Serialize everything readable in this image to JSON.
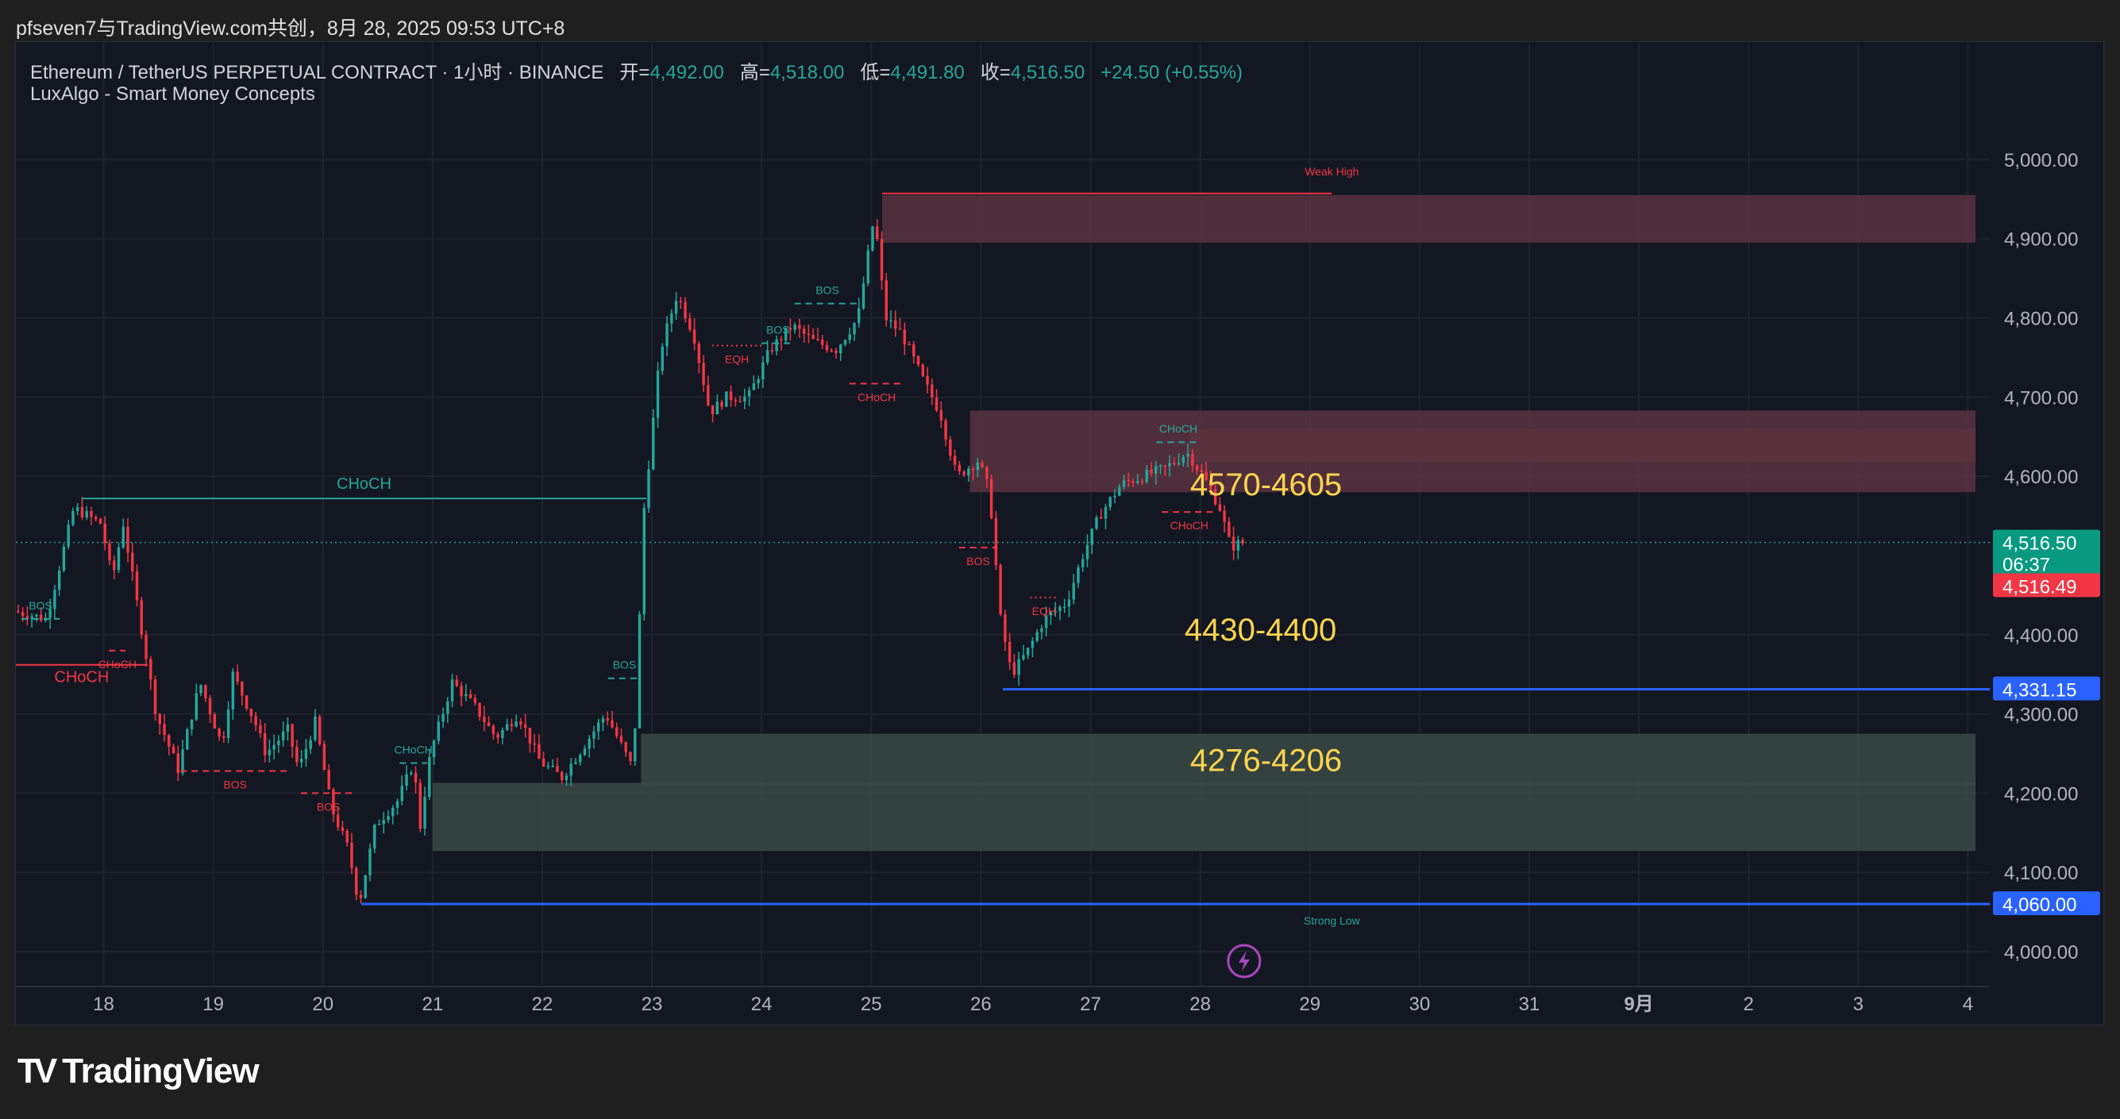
{
  "header": {
    "publisher": "pfseven7与TradingView.com共创，8月 28, 2025 09:53 UTC+8"
  },
  "legend": {
    "symbol": "Ethereum / TetherUS PERPETUAL CONTRACT · 1小时 · BINANCE",
    "open_label": "开=",
    "open": "4,492.00",
    "high_label": "高=",
    "high": "4,518.00",
    "low_label": "低=",
    "low": "4,491.80",
    "close_label": "收=",
    "close": "4,516.50",
    "change": "+24.50 (+0.55%)",
    "indicator": "LuxAlgo - Smart Money Concepts"
  },
  "footer": {
    "brand": "TradingView"
  },
  "colors": {
    "up": "#26a69a",
    "down": "#f23645",
    "background": "#131722",
    "grid": "#1e222d",
    "level": "#2962ff",
    "annotation": "#ffd54f",
    "bull_zone": "#3b4a44",
    "bear_zone": "#5a3340"
  },
  "chart_data": {
    "type": "candlestick",
    "timeframe": "1小时",
    "ylim": [
      3970,
      5060
    ],
    "xlim_days": [
      17.2,
      35.2
    ],
    "grid": true,
    "y_ticks": [
      {
        "v": 5000,
        "label": "5,000.00"
      },
      {
        "v": 4900,
        "label": "4,900.00"
      },
      {
        "v": 4800,
        "label": "4,800.00"
      },
      {
        "v": 4700,
        "label": "4,700.00"
      },
      {
        "v": 4600,
        "label": "4,600.00"
      },
      {
        "v": 4400,
        "label": "4,400.00"
      },
      {
        "v": 4300,
        "label": "4,300.00"
      },
      {
        "v": 4200,
        "label": "4,200.00"
      },
      {
        "v": 4100,
        "label": "4,100.00"
      },
      {
        "v": 4000,
        "label": "4,000.00"
      }
    ],
    "x_ticks": [
      {
        "d": 18,
        "label": "18"
      },
      {
        "d": 19,
        "label": "19"
      },
      {
        "d": 20,
        "label": "20"
      },
      {
        "d": 21,
        "label": "21"
      },
      {
        "d": 22,
        "label": "22"
      },
      {
        "d": 23,
        "label": "23"
      },
      {
        "d": 24,
        "label": "24"
      },
      {
        "d": 25,
        "label": "25"
      },
      {
        "d": 26,
        "label": "26"
      },
      {
        "d": 27,
        "label": "27"
      },
      {
        "d": 28,
        "label": "28"
      },
      {
        "d": 29,
        "label": "29"
      },
      {
        "d": 30,
        "label": "30"
      },
      {
        "d": 31,
        "label": "31"
      },
      {
        "d": 32,
        "label": "9月",
        "bold": true
      },
      {
        "d": 33,
        "label": "2"
      },
      {
        "d": 34,
        "label": "3"
      },
      {
        "d": 35,
        "label": "4"
      }
    ],
    "price_path": [
      [
        17.2,
        4430
      ],
      [
        17.5,
        4420
      ],
      [
        17.75,
        4560
      ],
      [
        18.0,
        4540
      ],
      [
        18.1,
        4470
      ],
      [
        18.2,
        4540
      ],
      [
        18.3,
        4460
      ],
      [
        18.5,
        4300
      ],
      [
        18.7,
        4230
      ],
      [
        18.9,
        4340
      ],
      [
        19.1,
        4260
      ],
      [
        19.2,
        4350
      ],
      [
        19.4,
        4290
      ],
      [
        19.5,
        4250
      ],
      [
        19.7,
        4280
      ],
      [
        19.8,
        4230
      ],
      [
        19.95,
        4290
      ],
      [
        20.1,
        4180
      ],
      [
        20.25,
        4130
      ],
      [
        20.35,
        4060
      ],
      [
        20.5,
        4160
      ],
      [
        20.7,
        4190
      ],
      [
        20.85,
        4240
      ],
      [
        20.9,
        4150
      ],
      [
        21.0,
        4250
      ],
      [
        21.2,
        4340
      ],
      [
        21.4,
        4310
      ],
      [
        21.6,
        4270
      ],
      [
        21.8,
        4300
      ],
      [
        22.0,
        4240
      ],
      [
        22.2,
        4220
      ],
      [
        22.4,
        4260
      ],
      [
        22.6,
        4300
      ],
      [
        22.85,
        4230
      ],
      [
        22.95,
        4560
      ],
      [
        23.1,
        4760
      ],
      [
        23.25,
        4830
      ],
      [
        23.4,
        4780
      ],
      [
        23.55,
        4680
      ],
      [
        23.7,
        4700
      ],
      [
        23.9,
        4700
      ],
      [
        24.1,
        4760
      ],
      [
        24.3,
        4790
      ],
      [
        24.5,
        4770
      ],
      [
        24.7,
        4760
      ],
      [
        24.9,
        4800
      ],
      [
        25.05,
        4930
      ],
      [
        25.15,
        4800
      ],
      [
        25.3,
        4780
      ],
      [
        25.5,
        4720
      ],
      [
        25.65,
        4680
      ],
      [
        25.8,
        4600
      ],
      [
        26.0,
        4620
      ],
      [
        26.1,
        4580
      ],
      [
        26.2,
        4420
      ],
      [
        26.3,
        4350
      ],
      [
        26.45,
        4380
      ],
      [
        26.6,
        4420
      ],
      [
        26.8,
        4440
      ],
      [
        26.95,
        4500
      ],
      [
        27.1,
        4550
      ],
      [
        27.3,
        4590
      ],
      [
        27.5,
        4600
      ],
      [
        27.7,
        4610
      ],
      [
        27.9,
        4630
      ],
      [
        28.05,
        4600
      ],
      [
        28.2,
        4560
      ],
      [
        28.3,
        4510
      ],
      [
        28.38,
        4516
      ]
    ],
    "zones": [
      {
        "type": "bearish_ob",
        "from_day": 25.1,
        "top": 4955,
        "bottom": 4895
      },
      {
        "type": "bearish_ob",
        "from_day": 25.9,
        "top": 4683,
        "bottom": 4580
      },
      {
        "type": "bearish_ob",
        "from_day": 27.9,
        "top": 4660,
        "bottom": 4618
      },
      {
        "type": "bullish_ob",
        "from_day": 22.9,
        "top": 4275,
        "bottom": 4210
      },
      {
        "type": "bullish_ob",
        "from_day": 21.0,
        "top": 4213,
        "bottom": 4127
      }
    ],
    "structure_lines": [
      {
        "label": "CHoCH",
        "color": "up",
        "style": "solid",
        "x1": 17.8,
        "x2": 22.95,
        "y": 4572,
        "label_size": "large"
      },
      {
        "label": "CHoCH",
        "color": "down",
        "style": "solid",
        "x1": 17.2,
        "x2": 18.4,
        "y": 4362,
        "label_size": "large"
      },
      {
        "label": "BOS",
        "color": "up",
        "style": "dashed",
        "x1": 17.25,
        "x2": 17.6,
        "y": 4420
      },
      {
        "label": "CHoCH",
        "color": "down",
        "style": "dashed",
        "x1": 18.05,
        "x2": 18.2,
        "y": 4380
      },
      {
        "label": "BOS",
        "color": "down",
        "style": "dashed",
        "x1": 18.7,
        "x2": 19.7,
        "y": 4228
      },
      {
        "label": "BOS",
        "color": "down",
        "style": "dashed",
        "x1": 19.8,
        "x2": 20.3,
        "y": 4200
      },
      {
        "label": "CHoCH",
        "color": "up",
        "style": "dashed",
        "x1": 20.7,
        "x2": 20.95,
        "y": 4238
      },
      {
        "label": "BOS",
        "color": "up",
        "style": "dashed",
        "x1": 22.6,
        "x2": 22.9,
        "y": 4345
      },
      {
        "label": "EQH",
        "color": "down",
        "style": "dotted",
        "x1": 23.55,
        "x2": 24.0,
        "y": 4765
      },
      {
        "label": "BOS",
        "color": "up",
        "style": "dashed",
        "x1": 24.0,
        "x2": 24.3,
        "y": 4768
      },
      {
        "label": "BOS",
        "color": "up",
        "style": "dashed",
        "x1": 24.3,
        "x2": 24.9,
        "y": 4818
      },
      {
        "label": "CHoCH",
        "color": "down",
        "style": "dashed",
        "x1": 24.8,
        "x2": 25.3,
        "y": 4717
      },
      {
        "label": "BOS",
        "color": "down",
        "style": "dashed",
        "x1": 25.8,
        "x2": 26.15,
        "y": 4510
      },
      {
        "label": "EQH",
        "color": "down",
        "style": "dotted",
        "x1": 26.45,
        "x2": 26.7,
        "y": 4447
      },
      {
        "label": "CHoCH",
        "color": "up",
        "style": "dashed",
        "x1": 27.6,
        "x2": 28.0,
        "y": 4643
      },
      {
        "label": "CHoCH",
        "color": "down",
        "style": "dashed",
        "x1": 27.65,
        "x2": 28.15,
        "y": 4555
      }
    ],
    "swing_labels": [
      {
        "label": "Weak High",
        "color": "down",
        "x1": 25.1,
        "x2": 29.2,
        "y": 4957,
        "text_day": 29.2,
        "text_y": 4980
      },
      {
        "label": "Strong Low",
        "color": "up",
        "x1": null,
        "x2": null,
        "y": null,
        "text_day": 29.2,
        "text_y": 4034
      }
    ],
    "horizontal_levels": [
      {
        "value": 4331.15,
        "label": "4,331.15",
        "from_day": 26.2
      },
      {
        "value": 4060.0,
        "label": "4,060.00",
        "from_day": 20.35
      }
    ],
    "current_price": {
      "value": 4516.5,
      "label": "4,516.50",
      "countdown": "06:37",
      "bid_label": "4,516.49"
    },
    "annotations": [
      {
        "text": "4570-4605",
        "day": 28.6,
        "value": 4590
      },
      {
        "text": "4430-4400",
        "day": 28.55,
        "value": 4407
      },
      {
        "text": "4276-4206",
        "day": 28.6,
        "value": 4242
      }
    ]
  }
}
